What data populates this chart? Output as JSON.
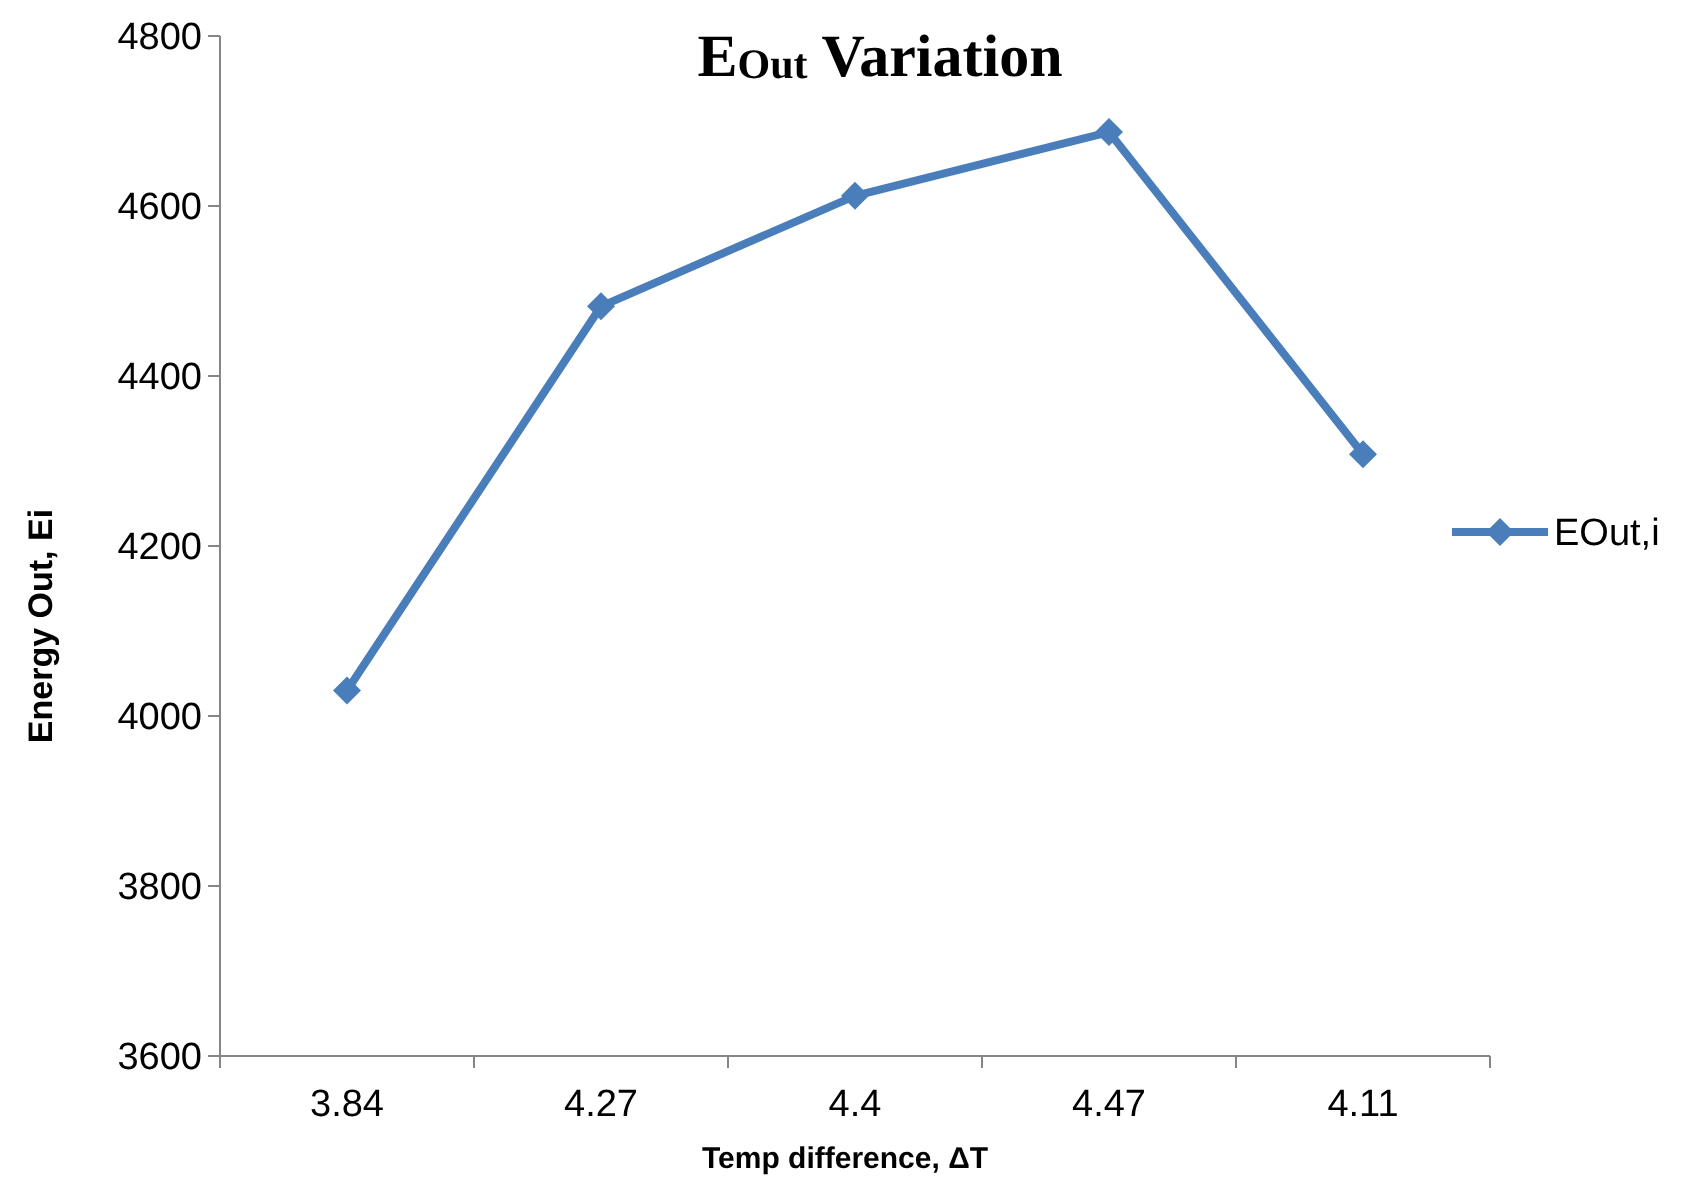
{
  "chart_data": {
    "type": "line",
    "title": "E$_{Out}$ Variation",
    "xlabel": "Temp difference, ΔT",
    "ylabel": "Energy Out, Ei",
    "categories": [
      "3.84",
      "4.27",
      "4.4",
      "4.47",
      "4.11"
    ],
    "series": [
      {
        "name": "EOut,i",
        "color": "#4a7ebb",
        "values": [
          4030,
          4482,
          4612,
          4687,
          4308
        ]
      }
    ],
    "ylim": [
      3600,
      4800
    ],
    "yticks": [
      3600,
      3800,
      4000,
      4200,
      4400,
      4600,
      4800
    ],
    "grid": false,
    "legend": "right",
    "marker": "diamond",
    "line_style": "solid"
  }
}
